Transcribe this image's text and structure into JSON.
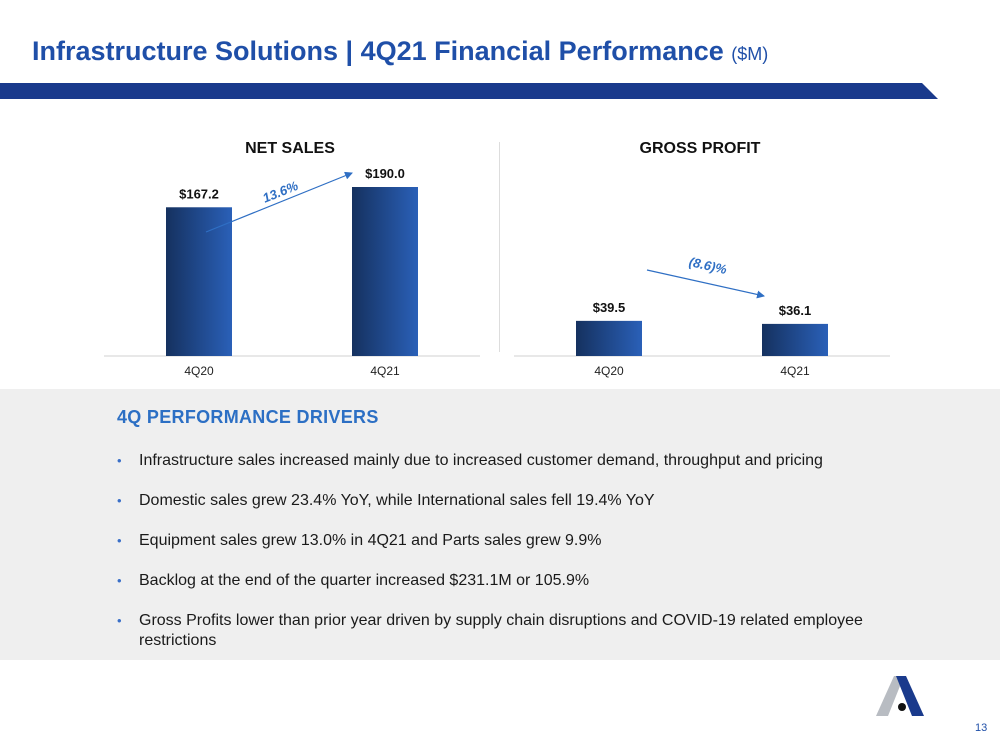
{
  "header": {
    "title": "Infrastructure Solutions | 4Q21 Financial Performance",
    "unit": "($M)"
  },
  "chart_data": [
    {
      "type": "bar",
      "title": "NET SALES",
      "categories": [
        "4Q20",
        "4Q21"
      ],
      "values": [
        167.2,
        190.0
      ],
      "value_labels": [
        "$167.2",
        "$190.0"
      ],
      "change_label": "13.6%",
      "bar_color": "#1f4b9c",
      "ylim": [
        0,
        200
      ]
    },
    {
      "type": "bar",
      "title": "GROSS PROFIT",
      "categories": [
        "4Q20",
        "4Q21"
      ],
      "values": [
        39.5,
        36.1
      ],
      "value_labels": [
        "$39.5",
        "$36.1"
      ],
      "change_label": "(8.6)%",
      "bar_color": "#1f4b9c",
      "ylim": [
        0,
        200
      ]
    }
  ],
  "drivers": {
    "heading": "4Q PERFORMANCE DRIVERS",
    "items": [
      "Infrastructure sales increased mainly due to increased customer demand, throughput and pricing",
      "Domestic sales grew 23.4% YoY, while International sales fell 19.4% YoY",
      "Equipment sales grew 13.0% in 4Q21 and Parts sales grew 9.9%",
      "Backlog at the end of the quarter increased $231.1M or 105.9%",
      "Gross Profits lower than prior year driven by supply chain disruptions and COVID-19 related employee restrictions"
    ]
  },
  "footer": {
    "page_number": "13",
    "logo_icon": "astec-logo-icon"
  },
  "colors": {
    "title": "#1f4fa8",
    "band": "#1a3a8c",
    "bar_dark": "#15315f",
    "bar_light": "#2a60b8",
    "arrow": "#2f6fc4",
    "drivers_bg": "#efefef"
  }
}
